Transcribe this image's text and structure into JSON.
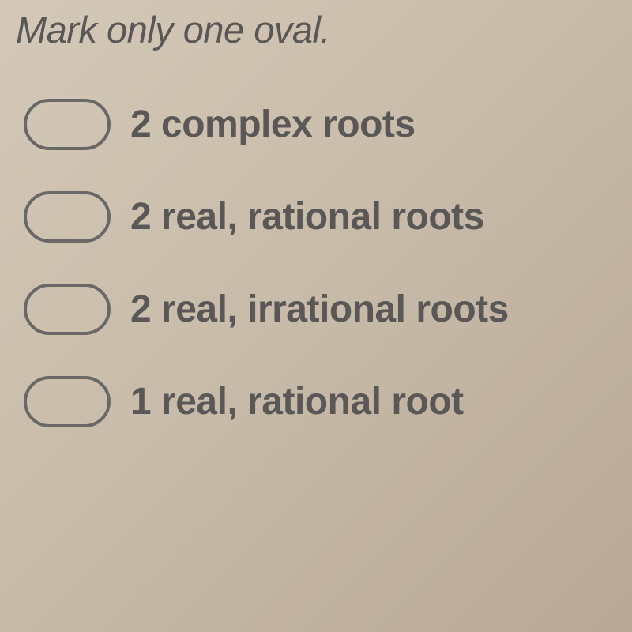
{
  "instruction": "Mark only one oval.",
  "options": [
    {
      "label": "2 complex roots"
    },
    {
      "label": "2 real, rational roots"
    },
    {
      "label": "2 real, irrational roots"
    },
    {
      "label": "1 real, rational root"
    }
  ],
  "styling": {
    "background_gradient_start": "#d4c8b8",
    "background_gradient_mid": "#c8baa8",
    "background_gradient_end": "#b8a896",
    "instruction_fontsize": 47,
    "instruction_color": "#5a5856",
    "option_fontsize": 48,
    "option_color": "#5a5856",
    "oval_width": 110,
    "oval_height": 65,
    "oval_border_color": "#6a6866",
    "oval_border_width": 4,
    "oval_border_radius": 35,
    "row_gap": 52,
    "font_weight_instruction": 500,
    "font_weight_option": 600
  }
}
